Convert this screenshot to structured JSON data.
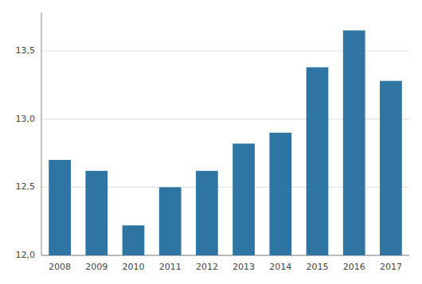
{
  "chart_data": {
    "type": "bar",
    "categories": [
      "2008",
      "2009",
      "2010",
      "2011",
      "2012",
      "2013",
      "2014",
      "2015",
      "2016",
      "2017"
    ],
    "values": [
      12.7,
      12.62,
      12.22,
      12.5,
      12.62,
      12.82,
      12.9,
      13.38,
      13.65,
      13.28
    ],
    "color": "#2e75a3",
    "ylim": [
      12.0,
      13.78
    ],
    "yticks": [
      {
        "value": 12.0,
        "label": "12,0"
      },
      {
        "value": 12.5,
        "label": "12,5"
      },
      {
        "value": 13.0,
        "label": "13,0"
      },
      {
        "value": 13.5,
        "label": "13,5"
      }
    ],
    "grid": true
  }
}
